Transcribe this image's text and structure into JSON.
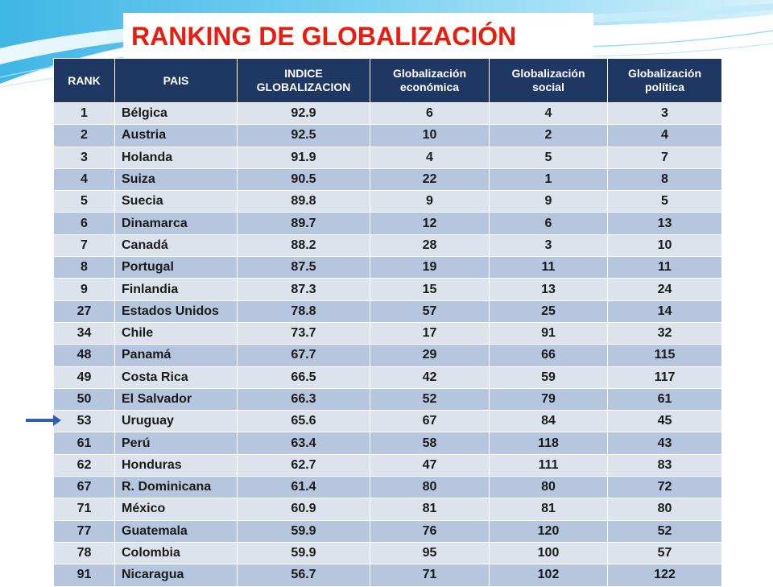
{
  "slide": {
    "title": "RANKING DE GLOBALIZACIÓN",
    "accent_title_color": "#e81d0e",
    "header_bg": "#1f3863",
    "row_light": "#dde3ec",
    "row_dark": "#b7c6df",
    "arrow_icon": "right-arrow-icon"
  },
  "table": {
    "headers": [
      "RANK",
      "PAIS",
      "INDICE\nGLOBALIZACION",
      "Globalización\neconómica",
      "Globalización\nsocial",
      "Globalización\npolítica"
    ],
    "rows": [
      [
        "1",
        "Bélgica",
        "92.9",
        "6",
        "4",
        "3"
      ],
      [
        "2",
        "Austria",
        "92.5",
        "10",
        "2",
        "4"
      ],
      [
        "3",
        "Holanda",
        "91.9",
        "4",
        "5",
        "7"
      ],
      [
        "4",
        "Suiza",
        "90.5",
        "22",
        "1",
        "8"
      ],
      [
        "5",
        "Suecia",
        "89.8",
        "9",
        "9",
        "5"
      ],
      [
        "6",
        "Dinamarca",
        "89.7",
        "12",
        "6",
        "13"
      ],
      [
        "7",
        "Canadá",
        "88.2",
        "28",
        "3",
        "10"
      ],
      [
        "8",
        "Portugal",
        "87.5",
        "19",
        "11",
        "11"
      ],
      [
        "9",
        "Finlandia",
        "87.3",
        "15",
        "13",
        "24"
      ],
      [
        "27",
        "Estados Unidos",
        "78.8",
        "57",
        "25",
        "14"
      ],
      [
        "34",
        "Chile",
        "73.7",
        "17",
        "91",
        "32"
      ],
      [
        "48",
        "Panamá",
        "67.7",
        "29",
        "66",
        "115"
      ],
      [
        "49",
        "Costa Rica",
        "66.5",
        "42",
        "59",
        "117"
      ],
      [
        "50",
        "El Salvador",
        "66.3",
        "52",
        "79",
        "61"
      ],
      [
        "53",
        "Uruguay",
        "65.6",
        "67",
        "84",
        "45"
      ],
      [
        "61",
        "Perú",
        "63.4",
        "58",
        "118",
        "43"
      ],
      [
        "62",
        "Honduras",
        "62.7",
        "47",
        "111",
        "83"
      ],
      [
        "67",
        "R. Dominicana",
        "61.4",
        "80",
        "80",
        "72"
      ],
      [
        "71",
        "México",
        "60.9",
        "81",
        "81",
        "80"
      ],
      [
        "77",
        "Guatemala",
        "59.9",
        "76",
        "120",
        "52"
      ],
      [
        "78",
        "Colombia",
        "59.9",
        "95",
        "100",
        "57"
      ],
      [
        "91",
        "Nicaragua",
        "56.7",
        "71",
        "102",
        "122"
      ]
    ]
  }
}
